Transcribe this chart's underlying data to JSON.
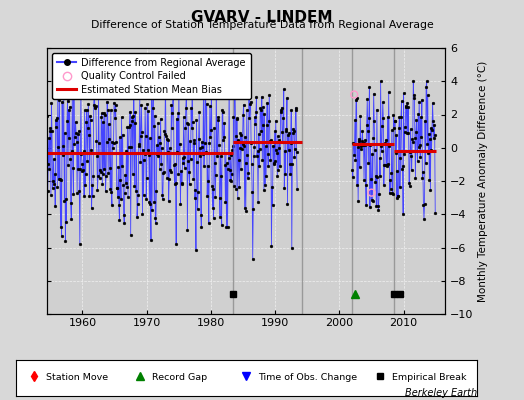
{
  "title": "GVARV - LINDEM",
  "subtitle": "Difference of Station Temperature Data from Regional Average",
  "ylabel": "Monthly Temperature Anomaly Difference (°C)",
  "xlim": [
    1954.5,
    2016.5
  ],
  "ylim": [
    -10,
    6
  ],
  "yticks": [
    -10,
    -8,
    -6,
    -4,
    -2,
    0,
    2,
    4,
    6
  ],
  "xticks": [
    1960,
    1970,
    1980,
    1990,
    2000,
    2010
  ],
  "background_color": "#d8d8d8",
  "plot_bg_color": "#d0d0d0",
  "gap_start": 1994.1,
  "gap_end": 2002.0,
  "seg1_start": 1954.5,
  "seg1_end": 1983.5,
  "seg2_start": 1983.5,
  "seg2_end": 1994.1,
  "seg3_start": 2002.0,
  "seg3_end": 2015.0,
  "bias1": -0.3,
  "bias2": 0.35,
  "bias3a": 0.2,
  "bias3b": -0.2,
  "break1_x": 1983.5,
  "break2_x": 2008.5,
  "break3_x": 2009.5,
  "record_gap_x": 2002.5,
  "vline_color": "#999999",
  "vline_lw": 1.0,
  "line_color": "#4444ff",
  "bias_color": "#dd0000",
  "qc_color": "#ff99cc",
  "marker_color": "black",
  "seed": 7,
  "months_per_year": 12,
  "seg1_years": 29,
  "seg2_years": 10,
  "seg3_years": 13,
  "mean1": -0.3,
  "std1": 2.2,
  "mean2": 0.35,
  "std2": 1.8,
  "mean3": 0.0,
  "std3": 1.9,
  "seasonal_amp": 1.5
}
